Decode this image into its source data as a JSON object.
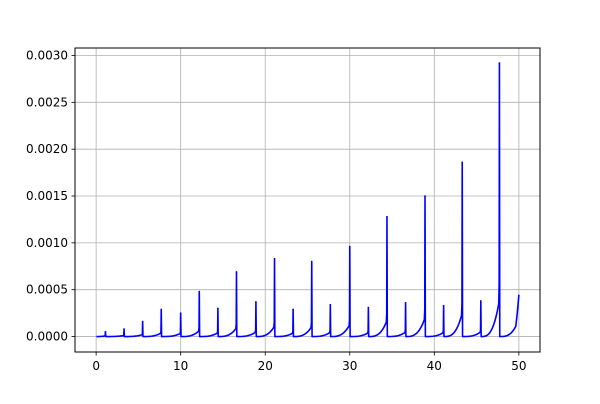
{
  "chart_data": {
    "type": "line",
    "title": "",
    "xlabel": "",
    "ylabel": "",
    "xlim": [
      -2.5,
      52.5
    ],
    "ylim": [
      -0.000165,
      0.00308
    ],
    "x_ticks": [
      0,
      10,
      20,
      30,
      40,
      50
    ],
    "x_tick_labels": [
      "0",
      "10",
      "20",
      "30",
      "40",
      "50"
    ],
    "y_ticks": [
      0,
      0.0005,
      0.001,
      0.0015,
      0.002,
      0.0025,
      0.003
    ],
    "y_tick_labels": [
      "0.0000",
      "0.0005",
      "0.0010",
      "0.0015",
      "0.0020",
      "0.0025",
      "0.0030"
    ],
    "grid": true,
    "legend": "none",
    "series": [
      {
        "color": "#0000ff",
        "peaks": [
          {
            "x": 1.1,
            "y": 5e-05
          },
          {
            "x": 3.3,
            "y": 8e-05
          },
          {
            "x": 5.5,
            "y": 0.00016
          },
          {
            "x": 7.7,
            "y": 0.00029
          },
          {
            "x": 10.0,
            "y": 0.00025
          },
          {
            "x": 12.2,
            "y": 0.00048
          },
          {
            "x": 14.4,
            "y": 0.0003
          },
          {
            "x": 16.6,
            "y": 0.00069
          },
          {
            "x": 18.9,
            "y": 0.00037
          },
          {
            "x": 21.1,
            "y": 0.00083
          },
          {
            "x": 23.3,
            "y": 0.00029
          },
          {
            "x": 25.5,
            "y": 0.0008
          },
          {
            "x": 27.7,
            "y": 0.00034
          },
          {
            "x": 30.0,
            "y": 0.00096
          },
          {
            "x": 32.2,
            "y": 0.00031
          },
          {
            "x": 34.4,
            "y": 0.00128
          },
          {
            "x": 36.6,
            "y": 0.00036
          },
          {
            "x": 38.9,
            "y": 0.0015
          },
          {
            "x": 41.1,
            "y": 0.00033
          },
          {
            "x": 43.3,
            "y": 0.00186
          },
          {
            "x": 45.5,
            "y": 0.00038
          },
          {
            "x": 47.7,
            "y": 0.00292
          }
        ],
        "end_point": {
          "x": 50.0,
          "y": 0.00044
        }
      }
    ]
  }
}
